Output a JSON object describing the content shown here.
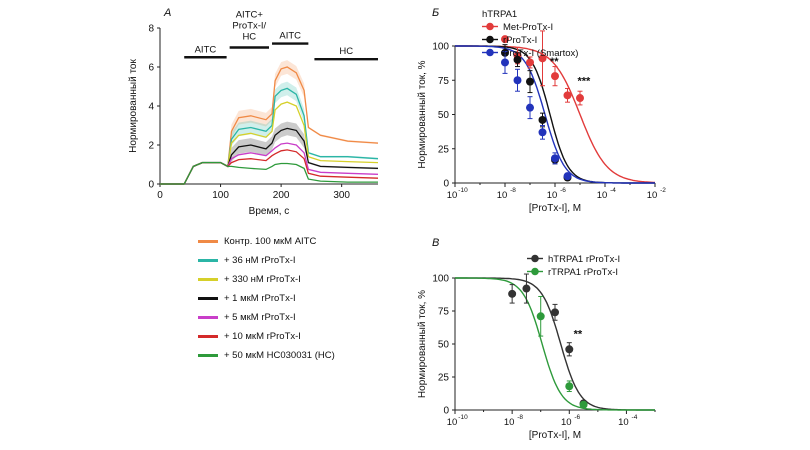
{
  "panel_labels": {
    "a": "A",
    "b": "Б",
    "c": "В"
  },
  "chart_data": [
    {
      "id": "A",
      "type": "line",
      "title": "",
      "xlabel": "Время, с",
      "ylabel": "Нормированный ток",
      "xlim": [
        0,
        360
      ],
      "ylim": [
        0,
        8
      ],
      "xticks": [
        0,
        100,
        200,
        300
      ],
      "yticks": [
        0,
        2,
        4,
        6,
        8
      ],
      "bars": [
        {
          "label": "AITC",
          "x0": 40,
          "x1": 110
        },
        {
          "label": "AITC+ ProTx-I/ HC",
          "x0": 115,
          "x1": 180
        },
        {
          "label": "AITC",
          "x0": 185,
          "x1": 245
        },
        {
          "label": "HC",
          "x0": 255,
          "x1": 360
        }
      ],
      "series": [
        {
          "name": "Контр. 100 мкМ AITC",
          "color": "#f08a46",
          "values": [
            [
              0,
              0
            ],
            [
              40,
              0
            ],
            [
              55,
              0.9
            ],
            [
              70,
              1.1
            ],
            [
              100,
              1.1
            ],
            [
              112,
              0.9
            ],
            [
              118,
              2.7
            ],
            [
              130,
              3.4
            ],
            [
              150,
              3.5
            ],
            [
              175,
              3.3
            ],
            [
              185,
              3.6
            ],
            [
              190,
              5.3
            ],
            [
              200,
              5.9
            ],
            [
              210,
              6.0
            ],
            [
              225,
              5.7
            ],
            [
              238,
              4.8
            ],
            [
              245,
              2.9
            ],
            [
              265,
              2.5
            ],
            [
              310,
              2.2
            ],
            [
              360,
              2.1
            ]
          ]
        },
        {
          "name": "+ 36 нМ rProTx-I",
          "color": "#2bb5a6",
          "values": [
            [
              0,
              0
            ],
            [
              40,
              0
            ],
            [
              55,
              0.9
            ],
            [
              70,
              1.1
            ],
            [
              100,
              1.1
            ],
            [
              112,
              0.9
            ],
            [
              118,
              2.3
            ],
            [
              130,
              2.8
            ],
            [
              150,
              2.9
            ],
            [
              175,
              2.7
            ],
            [
              185,
              3.0
            ],
            [
              190,
              4.5
            ],
            [
              200,
              4.8
            ],
            [
              210,
              4.9
            ],
            [
              225,
              4.6
            ],
            [
              238,
              3.5
            ],
            [
              245,
              1.6
            ],
            [
              265,
              1.4
            ],
            [
              310,
              1.4
            ],
            [
              360,
              1.3
            ]
          ]
        },
        {
          "name": "+ 330 нМ rProTx-I",
          "color": "#d6d02a",
          "values": [
            [
              0,
              0
            ],
            [
              40,
              0
            ],
            [
              55,
              0.9
            ],
            [
              70,
              1.1
            ],
            [
              100,
              1.1
            ],
            [
              112,
              0.9
            ],
            [
              118,
              2.1
            ],
            [
              130,
              2.5
            ],
            [
              150,
              2.6
            ],
            [
              175,
              2.4
            ],
            [
              185,
              2.7
            ],
            [
              190,
              3.8
            ],
            [
              200,
              4.1
            ],
            [
              210,
              4.2
            ],
            [
              225,
              4.0
            ],
            [
              238,
              3.0
            ],
            [
              245,
              1.4
            ],
            [
              265,
              1.2
            ],
            [
              310,
              1.15
            ],
            [
              360,
              1.1
            ]
          ]
        },
        {
          "name": "+ 1 мкМ rProTx-I",
          "color": "#111111",
          "values": [
            [
              0,
              0
            ],
            [
              40,
              0
            ],
            [
              55,
              0.9
            ],
            [
              70,
              1.1
            ],
            [
              100,
              1.1
            ],
            [
              112,
              0.9
            ],
            [
              118,
              1.5
            ],
            [
              130,
              1.9
            ],
            [
              150,
              2.0
            ],
            [
              175,
              1.8
            ],
            [
              185,
              2.1
            ],
            [
              190,
              2.5
            ],
            [
              200,
              2.75
            ],
            [
              210,
              2.85
            ],
            [
              225,
              2.75
            ],
            [
              238,
              2.2
            ],
            [
              245,
              1.1
            ],
            [
              265,
              0.9
            ],
            [
              310,
              0.85
            ],
            [
              360,
              0.8
            ]
          ]
        },
        {
          "name": "+ 5 мкМ rProTx-I",
          "color": "#c93ec9",
          "values": [
            [
              0,
              0
            ],
            [
              40,
              0
            ],
            [
              55,
              0.9
            ],
            [
              70,
              1.1
            ],
            [
              100,
              1.1
            ],
            [
              112,
              0.9
            ],
            [
              118,
              1.3
            ],
            [
              130,
              1.5
            ],
            [
              150,
              1.6
            ],
            [
              175,
              1.45
            ],
            [
              185,
              1.7
            ],
            [
              190,
              1.85
            ],
            [
              200,
              2.05
            ],
            [
              210,
              2.1
            ],
            [
              225,
              2.0
            ],
            [
              238,
              1.6
            ],
            [
              245,
              0.75
            ],
            [
              265,
              0.6
            ],
            [
              310,
              0.55
            ],
            [
              360,
              0.5
            ]
          ]
        },
        {
          "name": "+ 10 мкМ rProTx-I",
          "color": "#d42a2a",
          "values": [
            [
              0,
              0
            ],
            [
              40,
              0
            ],
            [
              55,
              0.9
            ],
            [
              70,
              1.1
            ],
            [
              100,
              1.1
            ],
            [
              112,
              0.9
            ],
            [
              118,
              1.1
            ],
            [
              130,
              1.25
            ],
            [
              150,
              1.3
            ],
            [
              175,
              1.2
            ],
            [
              185,
              1.45
            ],
            [
              190,
              1.55
            ],
            [
              200,
              1.7
            ],
            [
              210,
              1.75
            ],
            [
              225,
              1.65
            ],
            [
              238,
              1.3
            ],
            [
              245,
              0.55
            ],
            [
              265,
              0.4
            ],
            [
              310,
              0.35
            ],
            [
              360,
              0.3
            ]
          ]
        },
        {
          "name": "+ 50 мкМ HC030031 (HC)",
          "color": "#2e9a3b",
          "values": [
            [
              0,
              0
            ],
            [
              40,
              0
            ],
            [
              55,
              0.9
            ],
            [
              70,
              1.1
            ],
            [
              100,
              1.1
            ],
            [
              112,
              0.9
            ],
            [
              118,
              0.9
            ],
            [
              130,
              0.85
            ],
            [
              150,
              0.8
            ],
            [
              175,
              0.75
            ],
            [
              185,
              0.9
            ],
            [
              190,
              1.0
            ],
            [
              200,
              1.05
            ],
            [
              210,
              1.05
            ],
            [
              225,
              1.0
            ],
            [
              238,
              0.8
            ],
            [
              245,
              0.25
            ],
            [
              265,
              0.15
            ],
            [
              310,
              0.1
            ],
            [
              360,
              0.1
            ]
          ]
        }
      ]
    },
    {
      "id": "B",
      "type": "scatter",
      "title": "hTRPA1",
      "xlabel": "[ProTx-I], M",
      "ylabel": "Нормированный ток, %",
      "xscale": "log10",
      "xlim": [
        -10,
        -2
      ],
      "ylim": [
        0,
        100
      ],
      "xticks": [
        "10",
        "10",
        "10",
        "10",
        "10"
      ],
      "xtick_exps": [
        "-10",
        "-8",
        "-6",
        "-4",
        "-2"
      ],
      "xtick_log": [
        -10,
        -8,
        -6,
        -4,
        -2
      ],
      "yticks": [
        0,
        25,
        50,
        75,
        100
      ],
      "annotations": [
        {
          "text": "**",
          "logx": -6.2,
          "y": 86
        },
        {
          "text": "***",
          "logx": -5.1,
          "y": 72
        }
      ],
      "series": [
        {
          "name": "Met-ProTx-I",
          "color": "#e23b3b",
          "ic50_log": -5.0,
          "hill": 0.8,
          "points": [
            {
              "logx": -8.0,
              "y": 105,
              "err": 0
            },
            {
              "logx": -7.5,
              "y": 93,
              "err": 6
            },
            {
              "logx": -7.0,
              "y": 88,
              "err": 4
            },
            {
              "logx": -6.5,
              "y": 91,
              "err": 20
            },
            {
              "logx": -6.0,
              "y": 78,
              "err": 7
            },
            {
              "logx": -5.5,
              "y": 64,
              "err": 5
            },
            {
              "logx": -5.0,
              "y": 62,
              "err": 5
            }
          ]
        },
        {
          "name": "rProTx-I",
          "color": "#111111",
          "ic50_log": -6.2,
          "hill": 1.2,
          "points": [
            {
              "logx": -8.0,
              "y": 95,
              "err": 6
            },
            {
              "logx": -7.5,
              "y": 90,
              "err": 5
            },
            {
              "logx": -7.0,
              "y": 74,
              "err": 8
            },
            {
              "logx": -6.5,
              "y": 46,
              "err": 5
            },
            {
              "logx": -6.0,
              "y": 17,
              "err": 3
            },
            {
              "logx": -5.5,
              "y": 4,
              "err": 2
            }
          ]
        },
        {
          "name": "ProTx-I (Smartox)",
          "color": "#2233bb",
          "ic50_log": -6.4,
          "hill": 1.1,
          "points": [
            {
              "logx": -8.0,
              "y": 88,
              "err": 8
            },
            {
              "logx": -7.5,
              "y": 75,
              "err": 8
            },
            {
              "logx": -7.0,
              "y": 55,
              "err": 8
            },
            {
              "logx": -6.5,
              "y": 37,
              "err": 5
            },
            {
              "logx": -6.0,
              "y": 18,
              "err": 4
            },
            {
              "logx": -5.5,
              "y": 5,
              "err": 2
            }
          ]
        }
      ]
    },
    {
      "id": "C",
      "type": "scatter",
      "title": "",
      "xlabel": "[ProTx-I], M",
      "ylabel": "Нормированный ток, %",
      "xscale": "log10",
      "xlim": [
        -10,
        -3
      ],
      "ylim": [
        0,
        100
      ],
      "xticks": [
        "10",
        "10",
        "10",
        "10"
      ],
      "xtick_exps": [
        "-10",
        "-8",
        "-6",
        "-4"
      ],
      "xtick_log": [
        -10,
        -8,
        -6,
        -4
      ],
      "yticks": [
        0,
        25,
        50,
        75,
        100
      ],
      "annotations": [
        {
          "text": "**",
          "logx": -5.85,
          "y": 55
        }
      ],
      "series": [
        {
          "name": "hTRPA1 rProTx-I",
          "color": "#333333",
          "ic50_log": -6.3,
          "hill": 1.3,
          "points": [
            {
              "logx": -8.0,
              "y": 88,
              "err": 7
            },
            {
              "logx": -7.5,
              "y": 92,
              "err": 11
            },
            {
              "logx": -6.5,
              "y": 74,
              "err": 6
            },
            {
              "logx": -6.0,
              "y": 46,
              "err": 5
            },
            {
              "logx": -5.5,
              "y": 5,
              "err": 2
            }
          ]
        },
        {
          "name": "rTRPA1 rProTx-I",
          "color": "#2e9a3b",
          "ic50_log": -6.95,
          "hill": 1.3,
          "points": [
            {
              "logx": -7.0,
              "y": 71,
              "err": 15
            },
            {
              "logx": -6.0,
              "y": 18,
              "err": 4
            },
            {
              "logx": -5.5,
              "y": 4,
              "err": 2
            }
          ]
        }
      ]
    }
  ]
}
